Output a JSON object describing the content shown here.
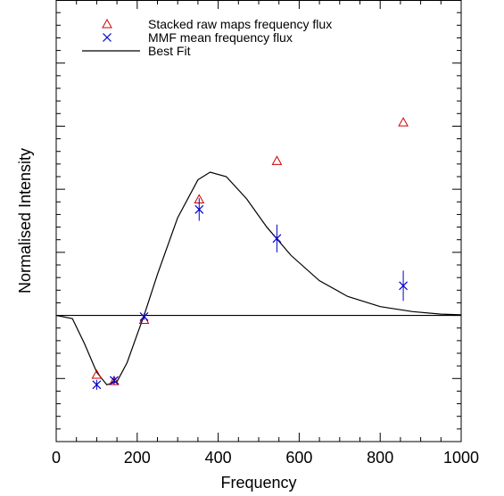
{
  "chart_data": {
    "type": "scatter",
    "title": "",
    "xlabel": "Frequency",
    "ylabel": "Normalised Intensity",
    "xlim": [
      0,
      1000
    ],
    "ylim": [
      -2,
      5
    ],
    "x_ticks": [
      0,
      200,
      400,
      600,
      800,
      1000
    ],
    "y_ticks": [
      -2,
      -1,
      0,
      1,
      2,
      3,
      4,
      5
    ],
    "y_tick_labels_visible": false,
    "grid": false,
    "legend_position": "top-left",
    "series": [
      {
        "name": "Stacked raw maps frequency flux",
        "marker": "triangle",
        "color": "#cc0000",
        "x": [
          100,
          143,
          217,
          353,
          545,
          857
        ],
        "y": [
          -0.94,
          -1.04,
          -0.07,
          1.84,
          2.45,
          3.06
        ]
      },
      {
        "name": "MMF mean frequency flux",
        "marker": "x",
        "color": "#0000cc",
        "x": [
          100,
          143,
          217,
          353,
          545,
          857
        ],
        "y": [
          -1.1,
          -1.03,
          -0.02,
          1.68,
          1.22,
          0.47
        ],
        "y_err": [
          0.08,
          0.07,
          0.05,
          0.18,
          0.22,
          0.24
        ]
      },
      {
        "name": "Best Fit",
        "type": "line",
        "color": "#000000",
        "x": [
          0,
          40,
          70,
          100,
          125,
          150,
          175,
          200,
          217,
          250,
          300,
          350,
          380,
          420,
          470,
          520,
          580,
          650,
          720,
          800,
          880,
          950,
          1000
        ],
        "y": [
          0,
          -0.05,
          -0.45,
          -0.9,
          -1.1,
          -1.05,
          -0.75,
          -0.3,
          0,
          0.65,
          1.55,
          2.15,
          2.27,
          2.2,
          1.85,
          1.4,
          0.95,
          0.55,
          0.3,
          0.14,
          0.06,
          0.02,
          0.01
        ]
      },
      {
        "name": "",
        "type": "line",
        "role": "zero-line",
        "color": "#000000",
        "x": [
          0,
          1000
        ],
        "y": [
          0,
          0
        ]
      }
    ]
  }
}
